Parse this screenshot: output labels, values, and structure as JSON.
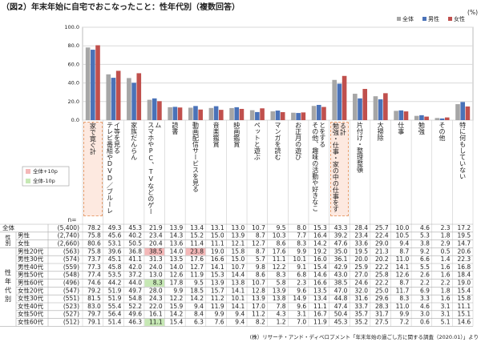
{
  "chart_data": {
    "type": "bar",
    "title": "（図2）年末年始に自宅でおこなったこと：性年代別（複数回答）",
    "unit": "(%)",
    "categories": [
      "家で寛ぐ計",
      "テレビ番組やDVD／ブルーレイ等を見る",
      "家族だんらん",
      "スマホやPC、TVなどのゲーム",
      "読書",
      "動画配信サービスを見る",
      "音楽鑑賞",
      "映画鑑賞",
      "ペットと遊ぶ",
      "マンガを読む",
      "お正月の遊び",
      "その他、趣味の活動や好きなことをする",
      "勉強・仕事・家の中の仕事をする計",
      "片付け・整理整頓",
      "大掃除",
      "仕事",
      "勉強",
      "その他",
      "特に何もしていない"
    ],
    "boxed_categories": [
      0,
      12
    ],
    "ylim": [
      0,
      100
    ],
    "yticks": [
      {
        "value": 0,
        "label": "0.0"
      },
      {
        "value": 20,
        "label": "20.0"
      },
      {
        "value": 40,
        "label": "40.0"
      },
      {
        "value": 60,
        "label": "60.0"
      },
      {
        "value": 80,
        "label": "80.0"
      },
      {
        "value": 100,
        "label": "100.0"
      }
    ],
    "grid": true,
    "legend": "top-right",
    "series": [
      {
        "name": "全体",
        "color": "#a6a6a6",
        "n": "(5,400)",
        "values": [
          78.2,
          49.3,
          45.3,
          21.9,
          13.9,
          13.4,
          13.1,
          13,
          10.7,
          9.5,
          8,
          15.3,
          43.3,
          28.4,
          25.7,
          10,
          4.6,
          2.3,
          17.2
        ],
        "value_labels": [
          "78.2",
          "49.3",
          "45.3",
          "21.9",
          "13.9",
          "13.4",
          "13.1",
          "13.0",
          "10.7",
          "9.5",
          "8.0",
          "15.3",
          "43.3",
          "28.4",
          "25.7",
          "10.0",
          "4.6",
          "2.3",
          "17.2"
        ]
      },
      {
        "name": "男性",
        "color": "#4a72b8",
        "n": "(2,740)",
        "values": [
          75.8,
          45.6,
          40.2,
          23.4,
          14.3,
          15.2,
          15,
          13.9,
          8.7,
          10.3,
          7.7,
          16.4,
          39.2,
          23.4,
          22.4,
          10.5,
          5.3,
          1.8,
          19.5
        ],
        "value_labels": [
          "75.8",
          "45.6",
          "40.2",
          "23.4",
          "14.3",
          "15.2",
          "15.0",
          "13.9",
          "8.7",
          "10.3",
          "7.7",
          "16.4",
          "39.2",
          "23.4",
          "22.4",
          "10.5",
          "5.3",
          "1.8",
          "19.5"
        ]
      },
      {
        "name": "女性",
        "color": "#c0504d",
        "n": "(2,660)",
        "values": [
          80.6,
          53.1,
          50.5,
          20.4,
          13.6,
          11.4,
          11.1,
          12.1,
          12.7,
          8.6,
          8.3,
          14.2,
          47.6,
          33.6,
          29,
          9.4,
          3.8,
          2.9,
          14.7
        ],
        "value_labels": [
          "80.6",
          "53.1",
          "50.5",
          "20.4",
          "13.6",
          "11.4",
          "11.1",
          "12.1",
          "12.7",
          "8.6",
          "8.3",
          "14.2",
          "47.6",
          "33.6",
          "29.0",
          "9.4",
          "3.8",
          "2.9",
          "14.7"
        ]
      }
    ]
  },
  "table": {
    "n_label": "n=",
    "gender_label": "性別",
    "age_label": "性年代別",
    "threshold": 10,
    "high": {
      "label": "全体+10p",
      "color": "#f4b8b8"
    },
    "low": {
      "label": "全体-10p",
      "color": "#c6e8b4"
    },
    "rows": [
      {
        "label": "男性20代",
        "n": "(563)",
        "values": [
          "75.8",
          "39.6",
          "36.8",
          "38.5",
          "14.0",
          "23.8",
          "19.0",
          "15.8",
          "8.7",
          "17.6",
          "9.9",
          "19.2",
          "35.0",
          "19.5",
          "21.3",
          "8.7",
          "9.2",
          "0.5",
          "20.6"
        ]
      },
      {
        "label": "男性30代",
        "n": "(574)",
        "values": [
          "73.7",
          "45.1",
          "41.1",
          "31.3",
          "13.5",
          "17.6",
          "16.6",
          "15.0",
          "5.7",
          "11.1",
          "10.1",
          "16.0",
          "36.1",
          "20.0",
          "20.2",
          "11.0",
          "6.6",
          "1.4",
          "22.3"
        ]
      },
      {
        "label": "男性40代",
        "n": "(559)",
        "values": [
          "77.3",
          "45.8",
          "42.0",
          "24.0",
          "14.0",
          "12.7",
          "14.1",
          "10.7",
          "9.8",
          "12.2",
          "9.1",
          "15.4",
          "42.9",
          "25.9",
          "22.2",
          "14.1",
          "5.5",
          "1.6",
          "16.8"
        ]
      },
      {
        "label": "男性50代",
        "n": "(548)",
        "values": [
          "77.4",
          "53.5",
          "37.2",
          "13.0",
          "12.6",
          "11.9",
          "15.3",
          "14.4",
          "8.6",
          "8.3",
          "6.8",
          "14.6",
          "43.0",
          "27.0",
          "25.8",
          "12.6",
          "2.6",
          "1.6",
          "18.4"
        ]
      },
      {
        "label": "男性60代",
        "n": "(496)",
        "values": [
          "74.6",
          "44.2",
          "44.0",
          "8.3",
          "17.8",
          "9.5",
          "13.9",
          "13.8",
          "10.7",
          "5.8",
          "2.3",
          "16.6",
          "38.5",
          "24.6",
          "22.2",
          "8.7",
          "2.2",
          "2.2",
          "19.0"
        ]
      },
      {
        "label": "女性20代",
        "n": "(547)",
        "values": [
          "79.2",
          "51.9",
          "49.7",
          "28.0",
          "9.9",
          "18.5",
          "15.7",
          "14.1",
          "12.8",
          "13.9",
          "9.6",
          "13.5",
          "47.0",
          "32.0",
          "25.0",
          "11.7",
          "6.9",
          "1.8",
          "15.4"
        ]
      },
      {
        "label": "女性30代",
        "n": "(551)",
        "values": [
          "81.5",
          "51.9",
          "54.8",
          "24.3",
          "12.2",
          "14.2",
          "11.2",
          "10.1",
          "13.9",
          "13.8",
          "14.9",
          "13.4",
          "44.8",
          "31.6",
          "29.6",
          "8.3",
          "3.3",
          "1.6",
          "15.8"
        ]
      },
      {
        "label": "女性40代",
        "n": "(523)",
        "values": [
          "83.0",
          "55.4",
          "52.2",
          "22.0",
          "15.9",
          "9.4",
          "11.9",
          "14.1",
          "17.0",
          "7.8",
          "9.6",
          "11.1",
          "47.4",
          "33.7",
          "28.3",
          "11.0",
          "4.6",
          "3.1",
          "11.1"
        ]
      },
      {
        "label": "女性50代",
        "n": "(527)",
        "values": [
          "79.7",
          "56.4",
          "49.6",
          "16.1",
          "14.2",
          "8.4",
          "9.9",
          "9.4",
          "11.2",
          "4.3",
          "3.1",
          "16.7",
          "50.4",
          "35.7",
          "31.7",
          "9.9",
          "3.0",
          "3.1",
          "15.1"
        ]
      },
      {
        "label": "女性60代",
        "n": "(512)",
        "values": [
          "79.1",
          "51.4",
          "46.3",
          "11.1",
          "15.4",
          "6.3",
          "7.6",
          "9.4",
          "8.2",
          "1.2",
          "7.0",
          "11.9",
          "45.3",
          "35.2",
          "27.5",
          "7.2",
          "0.6",
          "5.1",
          "14.6"
        ]
      }
    ]
  },
  "source": "(株）リサーチ・アンド・ディベロプメント「年末年始の過ごし方に関する調査（2020.01）」より"
}
